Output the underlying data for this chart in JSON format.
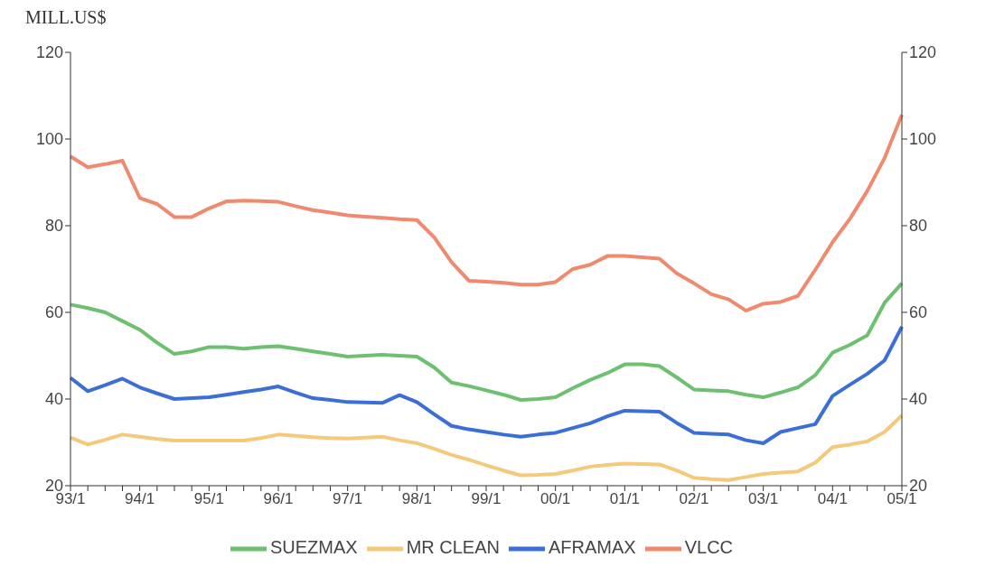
{
  "chart_data": {
    "type": "line",
    "ylabel": "MILL.US$",
    "categories": [
      "93/1",
      null,
      null,
      null,
      "94/1",
      null,
      null,
      null,
      "95/1",
      null,
      null,
      null,
      "96/1",
      null,
      null,
      null,
      "97/1",
      null,
      null,
      null,
      "98/1",
      null,
      null,
      null,
      "99/1",
      null,
      null,
      null,
      "00/1",
      null,
      null,
      null,
      "01/1",
      null,
      null,
      null,
      "02/1",
      null,
      null,
      null,
      "03/1",
      null,
      null,
      null,
      "04/1",
      null,
      null,
      null,
      "05/1"
    ],
    "ylim": [
      20,
      120
    ],
    "yticks": [
      20,
      40,
      60,
      80,
      100,
      120
    ],
    "y2lim": [
      20,
      120
    ],
    "y2ticks": [
      20,
      40,
      60,
      80,
      100,
      120
    ],
    "legend": "bottom",
    "marker": "none",
    "line_style": "solid",
    "series": [
      {
        "name": "SUEZMAX",
        "color": "#6cc070",
        "values": [
          61.8,
          61,
          60,
          58,
          56,
          53,
          50.4,
          51,
          52,
          52,
          51.6,
          52,
          52.2,
          51.6,
          51,
          50.4,
          49.8,
          50,
          50.2,
          50,
          49.8,
          47.3,
          43.8,
          43,
          42,
          41,
          39.8,
          40,
          40.4,
          42.5,
          44.4,
          46,
          48,
          48,
          47.6,
          45,
          42.2,
          42,
          41.8,
          41,
          40.4,
          41.5,
          42.7,
          45.5,
          50.7,
          52.5,
          54.7,
          62.2,
          66.7
        ]
      },
      {
        "name": "MR CLEAN",
        "color": "#f5c97a",
        "values": [
          31.1,
          29.5,
          30.6,
          31.8,
          31.3,
          30.8,
          30.4,
          30.4,
          30.4,
          30.4,
          30.4,
          31,
          31.8,
          31.5,
          31.2,
          31,
          30.9,
          31.1,
          31.3,
          30.5,
          29.8,
          28.5,
          27.1,
          26,
          24.7,
          23.5,
          22.4,
          22.5,
          22.7,
          23.5,
          24.4,
          24.8,
          25.1,
          25,
          24.9,
          23.5,
          21.8,
          21.5,
          21.3,
          22,
          22.7,
          23,
          23.3,
          25.3,
          28.9,
          29.5,
          30.2,
          32.4,
          36.2
        ]
      },
      {
        "name": "AFRAMAX",
        "color": "#3b6fd6",
        "values": [
          44.9,
          41.8,
          43.2,
          44.7,
          42.7,
          41.3,
          40,
          40.2,
          40.4,
          41,
          41.6,
          42.2,
          42.9,
          41.5,
          40.2,
          39.8,
          39.3,
          39.2,
          39.1,
          40.9,
          39.3,
          36.5,
          33.8,
          33,
          32.4,
          31.8,
          31.3,
          31.8,
          32.2,
          33.3,
          34.4,
          36,
          37.3,
          37.2,
          37.1,
          34.5,
          32.2,
          32,
          31.8,
          30.5,
          29.8,
          32.4,
          33.3,
          34.2,
          40.7,
          43.3,
          45.8,
          48.9,
          56.7
        ]
      },
      {
        "name": "VLCC",
        "color": "#f08a6e",
        "values": [
          96,
          93.5,
          94.2,
          95,
          86.4,
          85,
          82,
          82,
          84,
          85.6,
          85.8,
          85.7,
          85.5,
          84.5,
          83.6,
          83,
          82.4,
          82.1,
          81.8,
          81.5,
          81.3,
          77.3,
          71.6,
          67.3,
          67.1,
          66.8,
          66.4,
          66.4,
          67,
          70,
          71,
          73,
          73,
          72.7,
          72.4,
          69,
          66.7,
          64.2,
          63,
          60.4,
          62,
          62.4,
          63.8,
          69.8,
          76.2,
          81.6,
          88,
          95.6,
          105.6
        ]
      }
    ]
  }
}
